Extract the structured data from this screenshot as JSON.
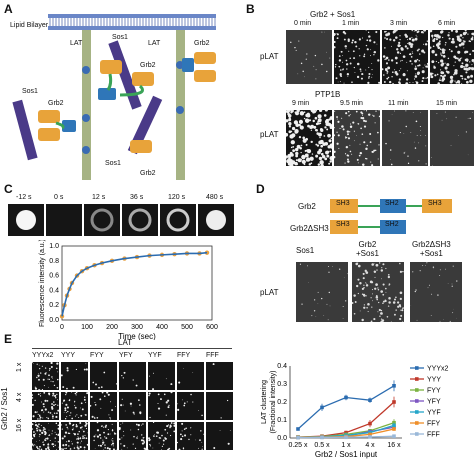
{
  "panels": {
    "A": {
      "label": "A",
      "lipid_bilayer": "Lipid Bilayer",
      "lat_labels": [
        "LAT",
        "LAT"
      ],
      "sos1_labels": [
        "Sos1",
        "Sos1",
        "Sos1",
        "Sos1"
      ],
      "grb2_labels": [
        "Grb2",
        "Grb2",
        "Grb2",
        "Grb2",
        "Grb2"
      ],
      "sh3": "SH3",
      "sh2": "SH2",
      "py": "pY"
    },
    "B": {
      "label": "B",
      "header": "Grb2 + Sos1",
      "row1_times": [
        "0 min",
        "1 min",
        "3 min",
        "6 min"
      ],
      "row2_header": "PTP1B",
      "row2_times": [
        "9 min",
        "9.5 min",
        "11 min",
        "15 min"
      ],
      "row_label": "pLAT"
    },
    "C": {
      "label": "C",
      "times": [
        "-12 s",
        "0 s",
        "12 s",
        "36 s",
        "120 s",
        "480 s"
      ]
    },
    "D": {
      "label": "D",
      "constructs": [
        "Grb2",
        "Grb2ΔSH3"
      ],
      "sh3": "SH3",
      "sh2": "SH2",
      "col_labels": [
        "Sos1",
        "Grb2\n+Sos1",
        "Grb2ΔSH3\n+Sos1"
      ],
      "row_label": "pLAT"
    },
    "E": {
      "label": "E",
      "lat_header": "LAT",
      "columns": [
        "YYYx2",
        "YYY",
        "FYY",
        "YFY",
        "YYF",
        "FFY",
        "FFF"
      ],
      "rows": [
        "1 x",
        "4 x",
        "16 x"
      ],
      "row_axis": "Grb2 / Sos1"
    }
  },
  "chart_data": [
    {
      "type": "scatter",
      "panel": "C",
      "xlabel": "Time (sec)",
      "ylabel": "Fluorescence intensity (a.u.)",
      "xlim": [
        0,
        600
      ],
      "ylim": [
        0,
        1.0
      ],
      "xticks": [
        0,
        100,
        200,
        300,
        400,
        500,
        600
      ],
      "yticks": [
        0.0,
        0.2,
        0.4,
        0.6,
        0.8,
        1.0
      ],
      "x": [
        0,
        10,
        20,
        30,
        40,
        60,
        80,
        100,
        130,
        160,
        200,
        250,
        300,
        350,
        400,
        450,
        500,
        550,
        580
      ],
      "y": [
        0.05,
        0.2,
        0.33,
        0.42,
        0.5,
        0.6,
        0.66,
        0.7,
        0.74,
        0.77,
        0.8,
        0.83,
        0.85,
        0.87,
        0.88,
        0.89,
        0.9,
        0.9,
        0.91
      ],
      "colors": {
        "points": "#e8a040",
        "fit": "#2b6cb0"
      }
    },
    {
      "type": "line",
      "panel": "E",
      "xlabel": "Grb2 / Sos1 input",
      "ylabel": "LAT clustering (Fractional intensity)",
      "categories": [
        "0.25 x",
        "0.5 x",
        "1 x",
        "4 x",
        "16 x"
      ],
      "ylim": [
        0,
        0.4
      ],
      "yticks": [
        0.0,
        0.1,
        0.2,
        0.3,
        0.4
      ],
      "series": [
        {
          "name": "YYYx2",
          "color": "#2b6cb0",
          "values": [
            0.05,
            0.17,
            0.225,
            0.21,
            0.29
          ],
          "err": [
            0.005,
            0.02,
            0.015,
            0.015,
            0.03
          ]
        },
        {
          "name": "YYY",
          "color": "#c0392b",
          "values": [
            0.005,
            0.01,
            0.03,
            0.08,
            0.2
          ],
          "err": [
            0.003,
            0.005,
            0.01,
            0.02,
            0.03
          ]
        },
        {
          "name": "FYY",
          "color": "#7cb342",
          "values": [
            0.005,
            0.008,
            0.02,
            0.04,
            0.085
          ],
          "err": [
            0.003,
            0.004,
            0.008,
            0.01,
            0.02
          ]
        },
        {
          "name": "YFY",
          "color": "#7e57c2",
          "values": [
            0.004,
            0.006,
            0.01,
            0.035,
            0.06
          ],
          "err": [
            0.002,
            0.003,
            0.005,
            0.01,
            0.01
          ]
        },
        {
          "name": "YYF",
          "color": "#26a6c9",
          "values": [
            0.004,
            0.006,
            0.015,
            0.03,
            0.07
          ],
          "err": [
            0.002,
            0.003,
            0.005,
            0.01,
            0.015
          ]
        },
        {
          "name": "FFY",
          "color": "#ef8f2a",
          "values": [
            0.003,
            0.005,
            0.008,
            0.02,
            0.05
          ],
          "err": [
            0.002,
            0.003,
            0.004,
            0.008,
            0.01
          ]
        },
        {
          "name": "FFF",
          "color": "#9ab8d8",
          "values": [
            0.002,
            0.003,
            0.004,
            0.006,
            0.01
          ],
          "err": [
            0.001,
            0.002,
            0.002,
            0.003,
            0.004
          ]
        }
      ]
    }
  ]
}
